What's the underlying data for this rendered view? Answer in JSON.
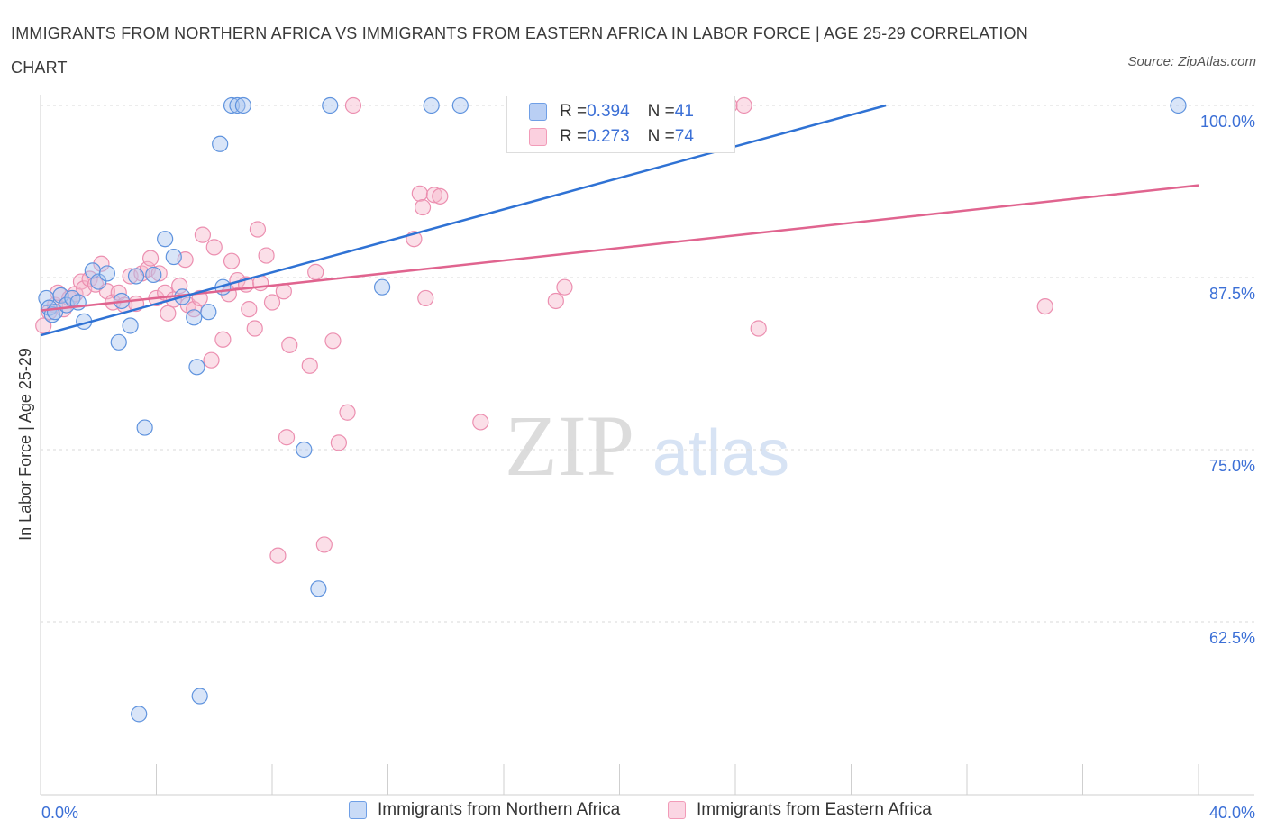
{
  "title": "IMMIGRANTS FROM NORTHERN AFRICA VS IMMIGRANTS FROM EASTERN AFRICA IN LABOR FORCE | AGE 25-29 CORRELATION CHART",
  "source": "Source: ZipAtlas.com",
  "watermark": {
    "zip": "ZIP",
    "atlas": "atlas"
  },
  "colors": {
    "blue": "#6f9fe6",
    "blue_line": "#2f72d4",
    "pink": "#f29bb8",
    "pink_line": "#e0648f",
    "tick_text": "#3b6fd6"
  },
  "stats": {
    "rows": [
      {
        "r_label": "R = ",
        "r_value": "0.394",
        "n_label": "N = ",
        "n_value": "41"
      },
      {
        "r_label": "R = ",
        "r_value": "0.273",
        "n_label": "N = ",
        "n_value": "74"
      }
    ]
  },
  "legend": [
    "Immigrants from Northern Africa",
    "Immigrants from Eastern Africa"
  ],
  "chart_data": {
    "type": "scatter",
    "xlabel": "",
    "ylabel": "In Labor Force | Age 25-29",
    "xlim": [
      0,
      40
    ],
    "ylim": [
      52,
      102
    ],
    "x_ticks": [
      "0.0%",
      "40.0%"
    ],
    "y_ticks": [
      {
        "value": 100,
        "label": "100.0%"
      },
      {
        "value": 87.5,
        "label": "87.5%"
      },
      {
        "value": 75,
        "label": "75.0%"
      },
      {
        "value": 62.5,
        "label": "62.5%"
      }
    ],
    "grid": true,
    "legend_position": "bottom",
    "series": [
      {
        "name": "Immigrants from Northern Africa",
        "color": "#6f9fe6",
        "trend": {
          "x": [
            0,
            29.2
          ],
          "y": [
            83.3,
            100
          ]
        },
        "points": [
          [
            0.2,
            86
          ],
          [
            0.3,
            85.3
          ],
          [
            0.4,
            84.8
          ],
          [
            0.5,
            85
          ],
          [
            0.7,
            86.2
          ],
          [
            0.9,
            85.5
          ],
          [
            1.1,
            86
          ],
          [
            1.3,
            85.7
          ],
          [
            1.5,
            84.3
          ],
          [
            1.8,
            88
          ],
          [
            2.0,
            87.2
          ],
          [
            2.3,
            87.8
          ],
          [
            2.7,
            82.8
          ],
          [
            2.8,
            85.8
          ],
          [
            3.1,
            84
          ],
          [
            3.3,
            87.6
          ],
          [
            3.4,
            55.8
          ],
          [
            3.6,
            76.6
          ],
          [
            3.9,
            87.7
          ],
          [
            4.3,
            90.3
          ],
          [
            4.6,
            89
          ],
          [
            4.9,
            86.1
          ],
          [
            5.3,
            84.6
          ],
          [
            5.4,
            81
          ],
          [
            5.5,
            57.1
          ],
          [
            5.8,
            85
          ],
          [
            6.2,
            97.2
          ],
          [
            6.3,
            86.8
          ],
          [
            6.6,
            100
          ],
          [
            6.8,
            100
          ],
          [
            7.0,
            100
          ],
          [
            9.1,
            75
          ],
          [
            9.6,
            64.9
          ],
          [
            10.0,
            100
          ],
          [
            11.8,
            86.8
          ],
          [
            13.5,
            100
          ],
          [
            14.5,
            100
          ],
          [
            17.6,
            100
          ],
          [
            18.6,
            100
          ],
          [
            39.3,
            100
          ]
        ]
      },
      {
        "name": "Immigrants from Eastern Africa",
        "color": "#f29bb8",
        "trend": {
          "x": [
            0,
            40
          ],
          "y": [
            85.1,
            94.2
          ]
        },
        "points": [
          [
            0.1,
            84
          ],
          [
            0.3,
            85
          ],
          [
            0.5,
            85.5
          ],
          [
            0.6,
            86.4
          ],
          [
            0.8,
            85.2
          ],
          [
            1.0,
            86
          ],
          [
            1.2,
            86.3
          ],
          [
            1.4,
            87.2
          ],
          [
            1.5,
            86.7
          ],
          [
            1.7,
            87.4
          ],
          [
            1.9,
            87
          ],
          [
            2.1,
            88.5
          ],
          [
            2.3,
            86.5
          ],
          [
            2.5,
            85.7
          ],
          [
            2.7,
            86.4
          ],
          [
            2.9,
            85.5
          ],
          [
            3.1,
            87.6
          ],
          [
            3.3,
            85.6
          ],
          [
            3.5,
            87.8
          ],
          [
            3.7,
            88.1
          ],
          [
            3.8,
            88.9
          ],
          [
            4.0,
            86
          ],
          [
            4.1,
            87.8
          ],
          [
            4.3,
            86.4
          ],
          [
            4.4,
            84.9
          ],
          [
            4.6,
            85.9
          ],
          [
            4.8,
            86.9
          ],
          [
            5.0,
            88.8
          ],
          [
            5.1,
            85.5
          ],
          [
            5.3,
            85.2
          ],
          [
            5.5,
            86
          ],
          [
            5.6,
            90.6
          ],
          [
            5.9,
            81.5
          ],
          [
            6.0,
            89.7
          ],
          [
            6.3,
            83
          ],
          [
            6.5,
            86.3
          ],
          [
            6.6,
            88.7
          ],
          [
            6.8,
            87.3
          ],
          [
            7.1,
            87
          ],
          [
            7.2,
            85.2
          ],
          [
            7.4,
            83.8
          ],
          [
            7.5,
            91
          ],
          [
            7.6,
            87.1
          ],
          [
            7.8,
            89.1
          ],
          [
            8.0,
            85.7
          ],
          [
            8.2,
            67.3
          ],
          [
            8.4,
            86.5
          ],
          [
            8.5,
            75.9
          ],
          [
            8.6,
            82.6
          ],
          [
            9.3,
            81.1
          ],
          [
            9.5,
            87.9
          ],
          [
            9.8,
            68.1
          ],
          [
            10.1,
            82.9
          ],
          [
            10.3,
            75.5
          ],
          [
            10.6,
            77.7
          ],
          [
            10.8,
            100
          ],
          [
            12.9,
            90.3
          ],
          [
            13.1,
            93.6
          ],
          [
            13.2,
            92.6
          ],
          [
            13.3,
            86
          ],
          [
            13.6,
            93.5
          ],
          [
            13.8,
            93.4
          ],
          [
            15.2,
            77
          ],
          [
            17.8,
            85.8
          ],
          [
            18.1,
            86.8
          ],
          [
            23.2,
            100
          ],
          [
            23.8,
            100
          ],
          [
            24.3,
            100
          ],
          [
            24.8,
            83.8
          ],
          [
            34.7,
            85.4
          ]
        ]
      }
    ]
  }
}
